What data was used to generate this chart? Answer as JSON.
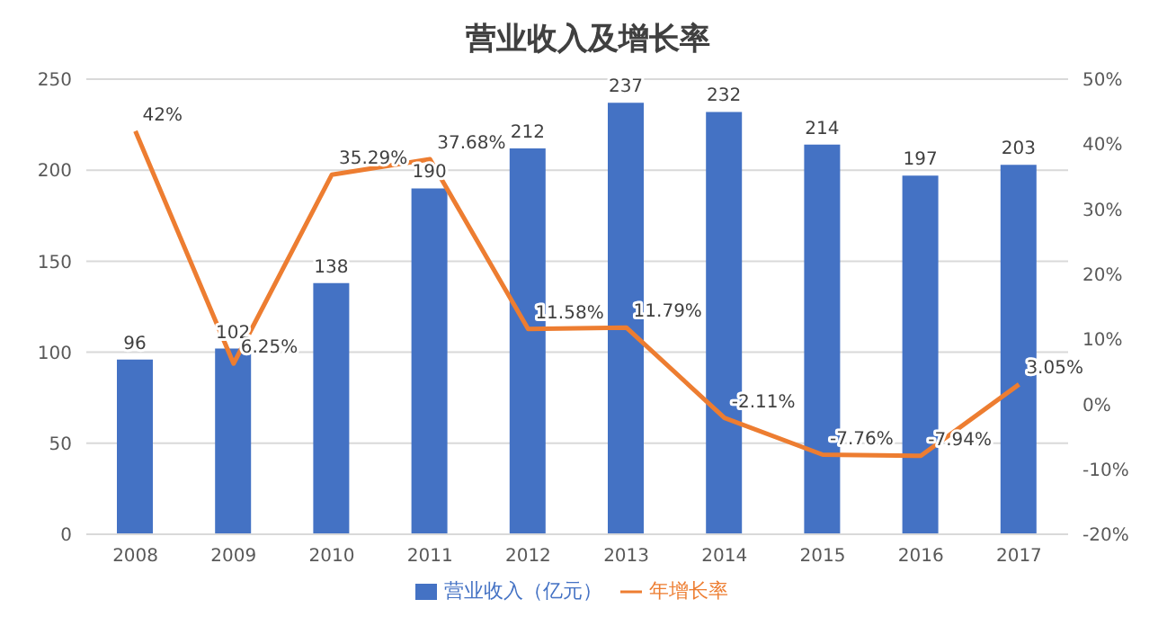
{
  "chart_data": {
    "type": "bar",
    "title": "营业收入及增长率",
    "categories": [
      "2008",
      "2009",
      "2010",
      "2011",
      "2012",
      "2013",
      "2014",
      "2015",
      "2016",
      "2017"
    ],
    "series": [
      {
        "name": "营业收入（亿元）",
        "color": "#4472c4",
        "values": [
          96,
          102,
          138,
          190,
          212,
          237,
          232,
          214,
          197,
          203
        ],
        "value_labels": [
          "96",
          "102",
          "138",
          "190",
          "212",
          "237",
          "232",
          "214",
          "197",
          "203"
        ]
      },
      {
        "name": "年增长率",
        "type": "line",
        "axis": "y2",
        "color": "#ed7d31",
        "values": [
          42,
          6.25,
          35.29,
          37.68,
          11.58,
          11.79,
          -2.11,
          -7.76,
          -7.94,
          3.05
        ],
        "value_labels": [
          "42%",
          "6.25%",
          "35.29%",
          "37.68%",
          "11.58%",
          "11.79%",
          "-2.11%",
          "-7.76%",
          "-7.94%",
          "3.05%"
        ]
      }
    ],
    "ylim": [
      0,
      250
    ],
    "yticks": [
      0,
      50,
      100,
      150,
      200,
      250
    ],
    "y2lim": [
      -20,
      50
    ],
    "y2ticks": [
      {
        "value": -20,
        "label": "-20%"
      },
      {
        "value": -10,
        "label": "-10%"
      },
      {
        "value": 0,
        "label": "0%"
      },
      {
        "value": 10,
        "label": "10%"
      },
      {
        "value": 20,
        "label": "20%"
      },
      {
        "value": 30,
        "label": "30%"
      },
      {
        "value": 40,
        "label": "40%"
      },
      {
        "value": 50,
        "label": "50%"
      }
    ],
    "grid": "y",
    "legend": "bottom",
    "marker": "none",
    "line_style": "solid"
  }
}
